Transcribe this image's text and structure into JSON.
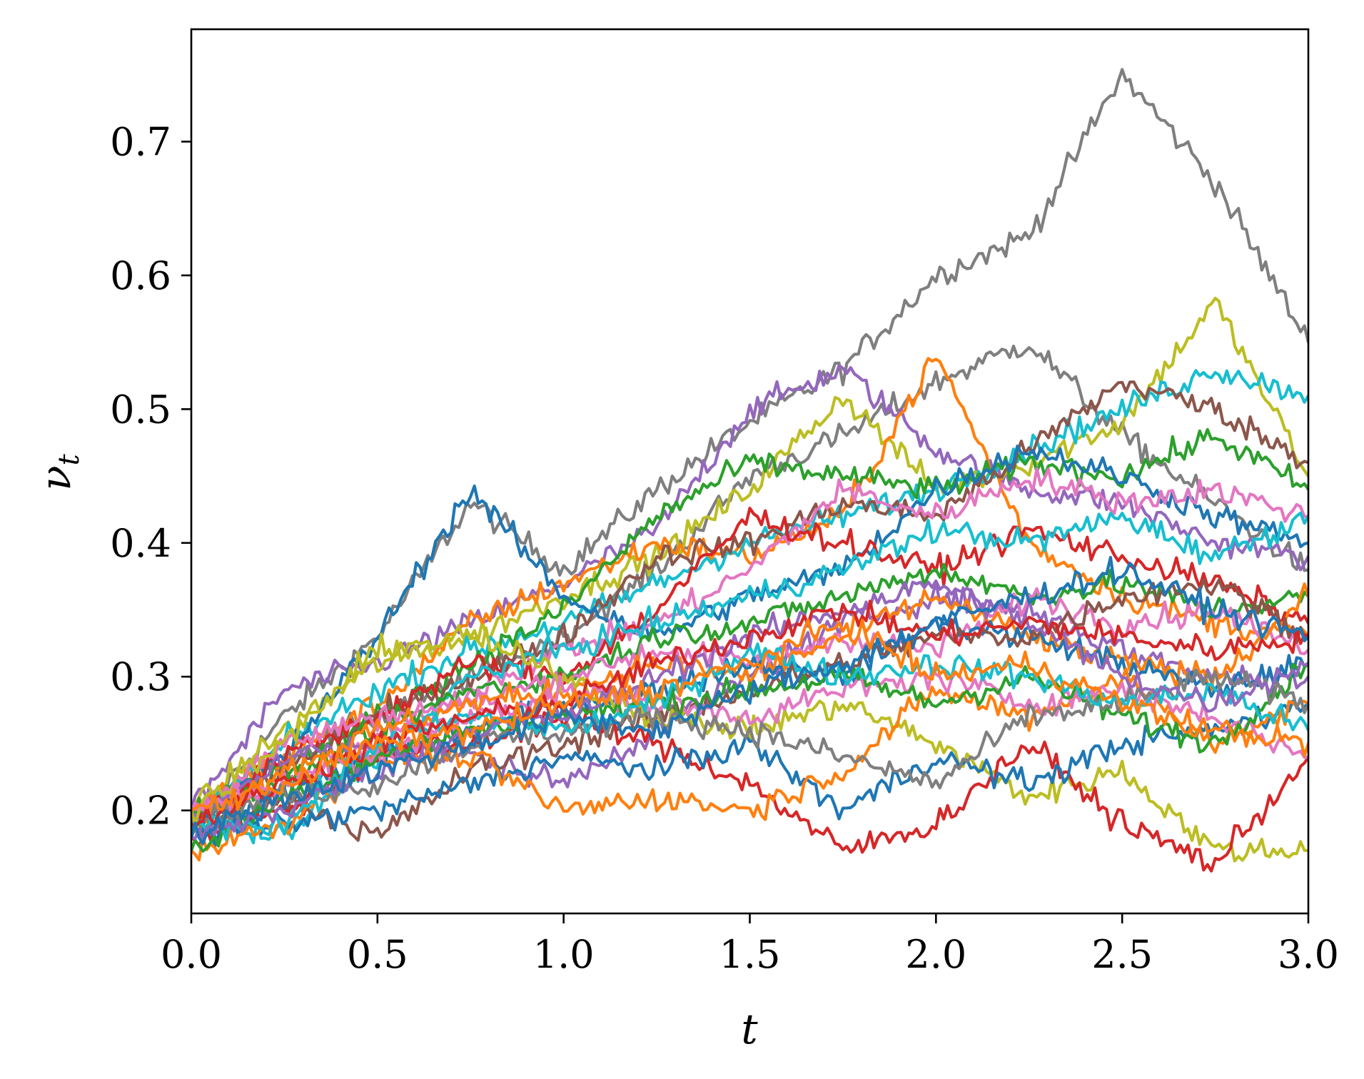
{
  "chart_data": {
    "type": "line",
    "title": "",
    "xlabel": "t",
    "ylabel": {
      "main": "ν",
      "subscript": "t"
    },
    "xlim": [
      0.0,
      3.0
    ],
    "ylim": [
      0.123,
      0.784
    ],
    "xticks": [
      0.0,
      0.5,
      1.0,
      1.5,
      2.0,
      2.5,
      3.0
    ],
    "xtick_labels": [
      "0.0",
      "0.5",
      "1.0",
      "1.5",
      "2.0",
      "2.5",
      "3.0"
    ],
    "yticks": [
      0.2,
      0.3,
      0.4,
      0.5,
      0.6,
      0.7
    ],
    "ytick_labels": [
      "0.2",
      "0.3",
      "0.4",
      "0.5",
      "0.6",
      "0.7"
    ],
    "grid": false,
    "legend": "none",
    "palette": [
      "#1f77b4",
      "#ff7f0e",
      "#2ca02c",
      "#d62728",
      "#9467bd",
      "#8c564b",
      "#e377c2",
      "#7f7f7f",
      "#bcbd22",
      "#17becf"
    ],
    "x": [
      0.0,
      0.25,
      0.5,
      0.75,
      1.0,
      1.25,
      1.5,
      1.75,
      2.0,
      2.25,
      2.5,
      2.75,
      3.0
    ],
    "series": [
      {
        "color": "#7f7f7f",
        "values": [
          0.19,
          0.27,
          0.33,
          0.43,
          0.38,
          0.44,
          0.49,
          0.53,
          0.6,
          0.63,
          0.75,
          0.67,
          0.55
        ]
      },
      {
        "color": "#7f7f7f",
        "values": [
          0.2,
          0.24,
          0.27,
          0.3,
          0.33,
          0.38,
          0.45,
          0.48,
          0.52,
          0.55,
          0.48,
          0.43,
          0.38
        ]
      },
      {
        "color": "#9467bd",
        "values": [
          0.2,
          0.29,
          0.31,
          0.34,
          0.37,
          0.41,
          0.5,
          0.53,
          0.47,
          0.44,
          0.43,
          0.4,
          0.39
        ]
      },
      {
        "color": "#bcbd22",
        "values": [
          0.2,
          0.26,
          0.31,
          0.33,
          0.36,
          0.39,
          0.44,
          0.51,
          0.44,
          0.46,
          0.49,
          0.58,
          0.45
        ]
      },
      {
        "color": "#ff7f0e",
        "values": [
          0.2,
          0.24,
          0.28,
          0.34,
          0.37,
          0.4,
          0.39,
          0.42,
          0.54,
          0.4,
          0.36,
          0.34,
          0.33
        ]
      },
      {
        "color": "#17becf",
        "values": [
          0.19,
          0.25,
          0.29,
          0.32,
          0.34,
          0.37,
          0.4,
          0.42,
          0.44,
          0.47,
          0.5,
          0.53,
          0.51
        ]
      },
      {
        "color": "#2ca02c",
        "values": [
          0.2,
          0.23,
          0.27,
          0.31,
          0.35,
          0.42,
          0.46,
          0.45,
          0.44,
          0.46,
          0.45,
          0.48,
          0.44
        ]
      },
      {
        "color": "#8c564b",
        "values": [
          0.19,
          0.23,
          0.27,
          0.3,
          0.33,
          0.39,
          0.4,
          0.43,
          0.42,
          0.47,
          0.52,
          0.5,
          0.46
        ]
      },
      {
        "color": "#1f77b4",
        "values": [
          0.19,
          0.24,
          0.33,
          0.44,
          0.36,
          0.33,
          0.36,
          0.38,
          0.44,
          0.47,
          0.45,
          0.42,
          0.4
        ]
      },
      {
        "color": "#e377c2",
        "values": [
          0.2,
          0.22,
          0.25,
          0.29,
          0.32,
          0.34,
          0.38,
          0.44,
          0.42,
          0.45,
          0.43,
          0.44,
          0.42
        ]
      },
      {
        "color": "#d62728",
        "values": [
          0.19,
          0.24,
          0.27,
          0.31,
          0.3,
          0.35,
          0.42,
          0.4,
          0.38,
          0.41,
          0.39,
          0.37,
          0.34
        ]
      },
      {
        "color": "#17becf",
        "values": [
          0.19,
          0.18,
          0.24,
          0.3,
          0.32,
          0.34,
          0.36,
          0.38,
          0.41,
          0.4,
          0.42,
          0.39,
          0.42
        ]
      },
      {
        "color": "#2ca02c",
        "values": [
          0.19,
          0.22,
          0.26,
          0.29,
          0.3,
          0.33,
          0.34,
          0.36,
          0.38,
          0.36,
          0.37,
          0.35,
          0.36
        ]
      },
      {
        "color": "#9467bd",
        "values": [
          0.19,
          0.24,
          0.25,
          0.24,
          0.22,
          0.26,
          0.3,
          0.34,
          0.36,
          0.35,
          0.32,
          0.3,
          0.3
        ]
      },
      {
        "color": "#e377c2",
        "values": [
          0.2,
          0.25,
          0.27,
          0.28,
          0.3,
          0.32,
          0.31,
          0.33,
          0.32,
          0.36,
          0.34,
          0.35,
          0.32
        ]
      },
      {
        "color": "#ff7f0e",
        "values": [
          0.19,
          0.23,
          0.26,
          0.28,
          0.29,
          0.31,
          0.3,
          0.33,
          0.36,
          0.33,
          0.31,
          0.3,
          0.36
        ]
      },
      {
        "color": "#1f77b4",
        "values": [
          0.19,
          0.21,
          0.24,
          0.26,
          0.28,
          0.29,
          0.31,
          0.3,
          0.34,
          0.33,
          0.31,
          0.29,
          0.31
        ]
      },
      {
        "color": "#8c564b",
        "values": [
          0.18,
          0.21,
          0.18,
          0.23,
          0.25,
          0.27,
          0.29,
          0.31,
          0.33,
          0.33,
          0.36,
          0.37,
          0.33
        ]
      },
      {
        "color": "#bcbd22",
        "values": [
          0.2,
          0.25,
          0.32,
          0.33,
          0.3,
          0.27,
          0.26,
          0.28,
          0.25,
          0.21,
          0.23,
          0.17,
          0.17
        ]
      },
      {
        "color": "#d62728",
        "values": [
          0.18,
          0.2,
          0.24,
          0.25,
          0.27,
          0.25,
          0.22,
          0.17,
          0.19,
          0.25,
          0.19,
          0.16,
          0.24
        ]
      },
      {
        "color": "#1f77b4",
        "values": [
          0.18,
          0.19,
          0.2,
          0.22,
          0.24,
          0.23,
          0.25,
          0.2,
          0.24,
          0.22,
          0.25,
          0.26,
          0.28
        ]
      },
      {
        "color": "#ff7f0e",
        "values": [
          0.17,
          0.19,
          0.24,
          0.24,
          0.2,
          0.21,
          0.2,
          0.23,
          0.29,
          0.27,
          0.3,
          0.25,
          0.28
        ]
      },
      {
        "color": "#e377c2",
        "values": [
          0.2,
          0.22,
          0.24,
          0.27,
          0.29,
          0.28,
          0.27,
          0.29,
          0.3,
          0.28,
          0.29,
          0.27,
          0.24
        ]
      },
      {
        "color": "#2ca02c",
        "values": [
          0.17,
          0.21,
          0.24,
          0.26,
          0.27,
          0.28,
          0.29,
          0.3,
          0.28,
          0.3,
          0.27,
          0.25,
          0.31
        ]
      },
      {
        "color": "#7f7f7f",
        "values": [
          0.19,
          0.21,
          0.22,
          0.25,
          0.26,
          0.27,
          0.26,
          0.24,
          0.22,
          0.27,
          0.28,
          0.3,
          0.28
        ]
      },
      {
        "color": "#17becf",
        "values": [
          0.19,
          0.19,
          0.25,
          0.27,
          0.26,
          0.28,
          0.32,
          0.3,
          0.31,
          0.3,
          0.28,
          0.29,
          0.26
        ]
      },
      {
        "color": "#9467bd",
        "values": [
          0.18,
          0.2,
          0.23,
          0.26,
          0.27,
          0.3,
          0.33,
          0.35,
          0.37,
          0.34,
          0.3,
          0.28,
          0.31
        ]
      },
      {
        "color": "#d62728",
        "values": [
          0.19,
          0.22,
          0.25,
          0.27,
          0.28,
          0.31,
          0.33,
          0.35,
          0.33,
          0.34,
          0.33,
          0.32,
          0.33
        ]
      },
      {
        "color": "#1f77b4",
        "values": [
          0.18,
          0.21,
          0.23,
          0.25,
          0.27,
          0.26,
          0.29,
          0.31,
          0.34,
          0.36,
          0.38,
          0.35,
          0.33
        ]
      },
      {
        "color": "#ff7f0e",
        "values": [
          0.2,
          0.22,
          0.25,
          0.26,
          0.28,
          0.29,
          0.31,
          0.34,
          0.3,
          0.31,
          0.28,
          0.26,
          0.25
        ]
      }
    ]
  }
}
